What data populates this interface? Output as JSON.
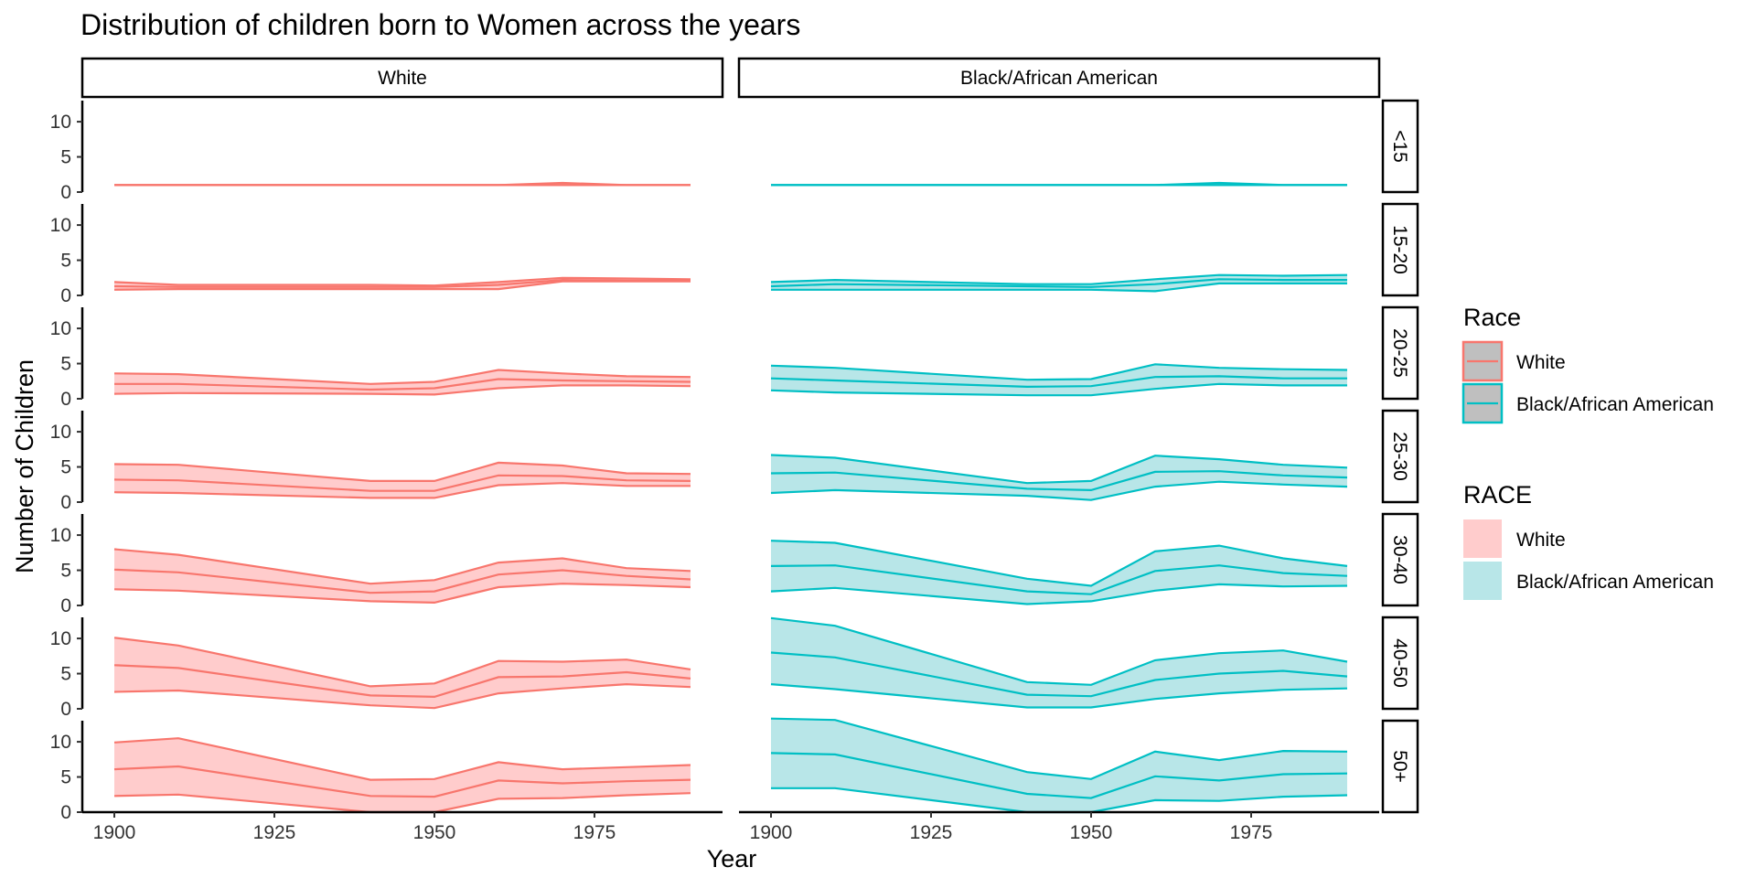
{
  "chart_data": {
    "type": "area",
    "title": "Distribution of children born to Women across the years",
    "xlabel": "Year",
    "ylabel": "Number of Children",
    "x": [
      1900,
      1910,
      1940,
      1950,
      1960,
      1970,
      1980,
      1990
    ],
    "xlim": [
      1895,
      1995
    ],
    "ylim": [
      0,
      13
    ],
    "x_ticks": [
      1900,
      1925,
      1950,
      1975
    ],
    "y_ticks": [
      0,
      5,
      10
    ],
    "grid": false,
    "columns": [
      "White",
      "Black/African American"
    ],
    "rows": [
      "<15",
      "15-20",
      "20-25",
      "25-30",
      "30-40",
      "40-50",
      "50+"
    ],
    "colors": {
      "White": "#F8766D",
      "Black/African American": "#00BFC4"
    },
    "fill_colors": {
      "White": "#FFCCCC",
      "Black/African American": "#B8E6E8"
    },
    "legend": {
      "position": "right",
      "line_title": "Race",
      "line_entries": [
        "White",
        "Black/African American"
      ],
      "fill_title": "RACE",
      "fill_entries": [
        "White",
        "Black/African American"
      ]
    },
    "panels": [
      {
        "race": "White",
        "age": "<15",
        "lower": [
          1,
          1,
          1,
          1,
          1,
          1,
          1,
          1
        ],
        "median": [
          1,
          1,
          1,
          1,
          1,
          1,
          1,
          1
        ],
        "upper": [
          1,
          1,
          1,
          1,
          1,
          1.3,
          1,
          1
        ]
      },
      {
        "race": "White",
        "age": "15-20",
        "lower": [
          0.8,
          0.9,
          0.9,
          0.9,
          0.9,
          2,
          2,
          2
        ],
        "median": [
          1.3,
          1.2,
          1.2,
          1.2,
          1.5,
          2.2,
          2.1,
          2.1
        ],
        "upper": [
          1.9,
          1.5,
          1.5,
          1.4,
          1.9,
          2.5,
          2.4,
          2.3
        ]
      },
      {
        "race": "White",
        "age": "20-25",
        "lower": [
          0.7,
          0.8,
          0.7,
          0.6,
          1.5,
          1.9,
          1.9,
          1.8
        ],
        "median": [
          2.1,
          2.1,
          1.3,
          1.5,
          2.8,
          2.6,
          2.5,
          2.4
        ],
        "upper": [
          3.6,
          3.5,
          2.1,
          2.4,
          4.1,
          3.6,
          3.2,
          3.1
        ]
      },
      {
        "race": "White",
        "age": "25-30",
        "lower": [
          1.4,
          1.3,
          0.6,
          0.6,
          2.4,
          2.7,
          2.3,
          2.3
        ],
        "median": [
          3.2,
          3.1,
          1.6,
          1.6,
          3.8,
          3.7,
          3.1,
          3.0
        ],
        "upper": [
          5.4,
          5.3,
          3.0,
          3.0,
          5.6,
          5.2,
          4.1,
          4.0
        ]
      },
      {
        "race": "White",
        "age": "30-40",
        "lower": [
          2.3,
          2.1,
          0.6,
          0.4,
          2.6,
          3.1,
          2.9,
          2.6
        ],
        "median": [
          5.1,
          4.7,
          1.8,
          2.0,
          4.4,
          5.0,
          4.2,
          3.7
        ],
        "upper": [
          8.0,
          7.2,
          3.1,
          3.6,
          6.1,
          6.7,
          5.3,
          4.9
        ]
      },
      {
        "race": "White",
        "age": "40-50",
        "lower": [
          2.4,
          2.6,
          0.5,
          0.1,
          2.2,
          2.9,
          3.5,
          3.1
        ],
        "median": [
          6.2,
          5.8,
          1.9,
          1.7,
          4.5,
          4.6,
          5.2,
          4.3
        ],
        "upper": [
          10.1,
          9.0,
          3.2,
          3.6,
          6.8,
          6.7,
          7.0,
          5.6
        ]
      },
      {
        "race": "White",
        "age": "50+",
        "lower": [
          2.3,
          2.5,
          0,
          0,
          1.9,
          2.0,
          2.4,
          2.7
        ],
        "median": [
          6.1,
          6.5,
          2.3,
          2.2,
          4.5,
          4.1,
          4.4,
          4.6
        ],
        "upper": [
          9.9,
          10.5,
          4.6,
          4.7,
          7.1,
          6.1,
          6.4,
          6.7
        ]
      },
      {
        "race": "Black/African American",
        "age": "<15",
        "lower": [
          1,
          1,
          1,
          1,
          1,
          1,
          1,
          1
        ],
        "median": [
          1,
          1,
          1,
          1,
          1,
          1,
          1,
          1
        ],
        "upper": [
          1,
          1,
          1,
          1,
          1,
          1.3,
          1,
          1
        ]
      },
      {
        "race": "Black/African American",
        "age": "15-20",
        "lower": [
          0.8,
          0.8,
          0.8,
          0.8,
          0.6,
          1.7,
          1.7,
          1.7
        ],
        "median": [
          1.3,
          1.6,
          1.3,
          1.2,
          1.6,
          2.3,
          2.2,
          2.2
        ],
        "upper": [
          1.9,
          2.2,
          1.6,
          1.6,
          2.3,
          2.9,
          2.8,
          2.9
        ]
      },
      {
        "race": "Black/African American",
        "age": "20-25",
        "lower": [
          1.2,
          0.9,
          0.5,
          0.5,
          1.4,
          2.1,
          1.9,
          1.9
        ],
        "median": [
          2.9,
          2.6,
          1.7,
          1.8,
          3.1,
          3.2,
          2.9,
          2.9
        ],
        "upper": [
          4.7,
          4.4,
          2.7,
          2.8,
          4.9,
          4.4,
          4.2,
          4.1
        ]
      },
      {
        "race": "Black/African American",
        "age": "25-30",
        "lower": [
          1.3,
          1.7,
          0.9,
          0.3,
          2.2,
          2.9,
          2.5,
          2.2
        ],
        "median": [
          4.1,
          4.2,
          1.9,
          1.7,
          4.3,
          4.4,
          3.8,
          3.5
        ],
        "upper": [
          6.7,
          6.3,
          2.7,
          3.0,
          6.6,
          6.1,
          5.3,
          4.9
        ]
      },
      {
        "race": "Black/African American",
        "age": "30-40",
        "lower": [
          2.0,
          2.5,
          0.2,
          0.6,
          2.1,
          3.0,
          2.7,
          2.8
        ],
        "median": [
          5.6,
          5.7,
          2.0,
          1.6,
          4.9,
          5.7,
          4.6,
          4.2
        ],
        "upper": [
          9.2,
          8.9,
          3.8,
          2.8,
          7.7,
          8.5,
          6.7,
          5.6
        ]
      },
      {
        "race": "Black/African American",
        "age": "40-50",
        "lower": [
          3.5,
          2.8,
          0.2,
          0.2,
          1.4,
          2.2,
          2.7,
          2.9
        ],
        "median": [
          8.0,
          7.3,
          2.0,
          1.8,
          4.1,
          5.0,
          5.4,
          4.6
        ],
        "upper": [
          12.9,
          11.8,
          3.8,
          3.4,
          6.9,
          7.9,
          8.3,
          6.7
        ]
      },
      {
        "race": "Black/African American",
        "age": "50+",
        "lower": [
          3.4,
          3.4,
          0,
          0,
          1.7,
          1.6,
          2.2,
          2.4
        ],
        "median": [
          8.4,
          8.2,
          2.6,
          2.0,
          5.1,
          4.5,
          5.4,
          5.5
        ],
        "upper": [
          13.3,
          13.1,
          5.7,
          4.7,
          8.6,
          7.4,
          8.7,
          8.6
        ]
      }
    ]
  }
}
